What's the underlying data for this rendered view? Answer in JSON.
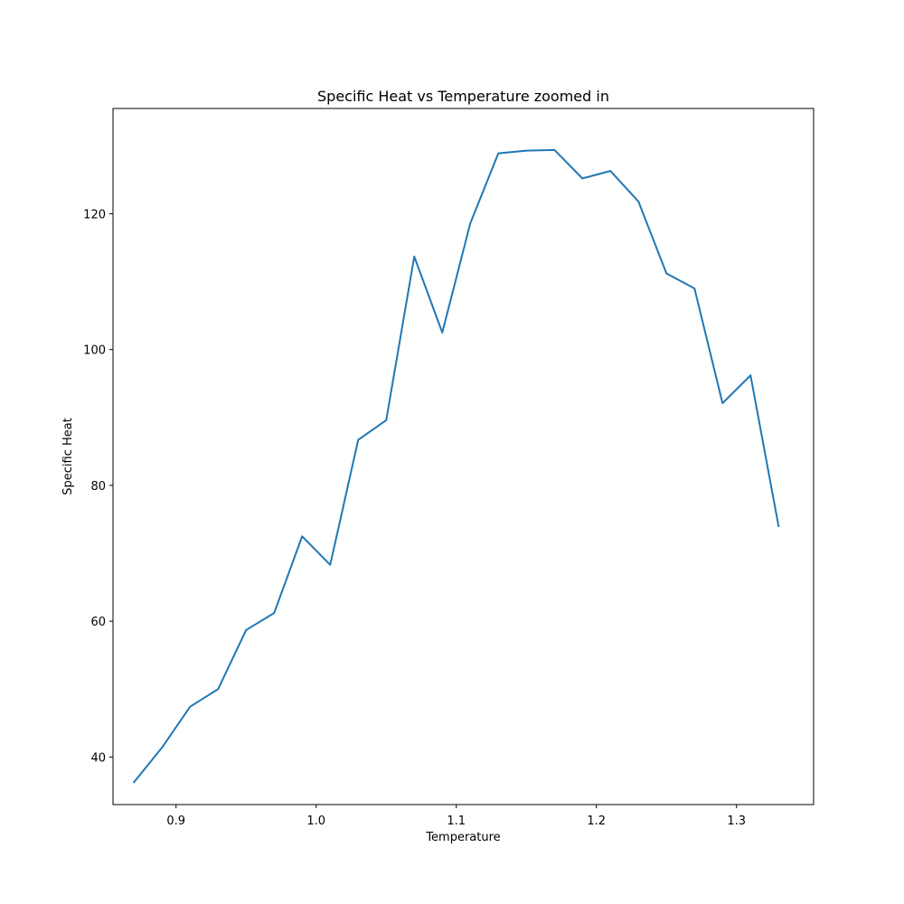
{
  "chart_data": {
    "type": "line",
    "title": "Specific Heat vs Temperature zoomed in",
    "xlabel": "Temperature",
    "ylabel": "Specific Heat",
    "xlim": [
      0.855,
      1.355
    ],
    "ylim": [
      33,
      135.5
    ],
    "xticks": [
      0.9,
      1.0,
      1.1,
      1.2,
      1.3
    ],
    "xtick_labels": [
      "0.9",
      "1.0",
      "1.1",
      "1.2",
      "1.3"
    ],
    "yticks": [
      40,
      60,
      80,
      100,
      120
    ],
    "ytick_labels": [
      "40",
      "60",
      "80",
      "100",
      "120"
    ],
    "grid": false,
    "series": [
      {
        "name": "Specific Heat",
        "color": "#1f77b4",
        "x": [
          0.87,
          0.89,
          0.91,
          0.93,
          0.95,
          0.97,
          0.99,
          1.01,
          1.03,
          1.05,
          1.07,
          1.09,
          1.11,
          1.13,
          1.15,
          1.17,
          1.19,
          1.21,
          1.23,
          1.25,
          1.27,
          1.29,
          1.31,
          1.33
        ],
        "y": [
          36.3,
          41.4,
          47.4,
          50.0,
          58.7,
          61.2,
          72.5,
          68.3,
          86.7,
          89.6,
          113.7,
          102.5,
          118.6,
          128.9,
          129.3,
          129.4,
          125.2,
          126.3,
          121.8,
          111.2,
          109.0,
          92.1,
          96.2,
          74.0
        ]
      }
    ]
  }
}
